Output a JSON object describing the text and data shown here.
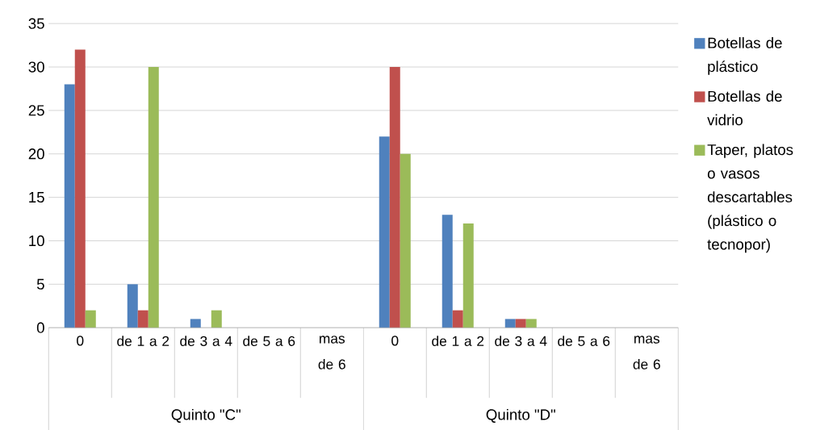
{
  "chart_data": {
    "type": "bar",
    "categories": [
      "0",
      "de 1 a 2",
      "de 3 a 4",
      "de 5 a 6",
      "mas de 6",
      "0",
      "de 1 a 2",
      "de 3 a 4",
      "de 5 a 6",
      "mas de 6"
    ],
    "series": [
      {
        "name": "Botellas de plástico",
        "color": "#4f81bd",
        "values": [
          28,
          5,
          1,
          0,
          0,
          22,
          13,
          1,
          0,
          0
        ]
      },
      {
        "name": "Botellas de vidrio",
        "color": "#c0504d",
        "values": [
          32,
          2,
          0,
          0,
          0,
          30,
          2,
          1,
          0,
          0
        ]
      },
      {
        "name": "Taper, platos o vasos descartables (plástico o tecnopor)",
        "color": "#9bbb59",
        "values": [
          2,
          30,
          2,
          0,
          0,
          20,
          12,
          1,
          0,
          0
        ]
      }
    ],
    "annotations": [
      "Quinto \"C\"",
      "Quinto \"D\""
    ],
    "ylim": [
      0,
      35
    ],
    "yticks": [
      0,
      5,
      10,
      15,
      20,
      25,
      30,
      35
    ],
    "grid": "y",
    "legend": "right"
  }
}
